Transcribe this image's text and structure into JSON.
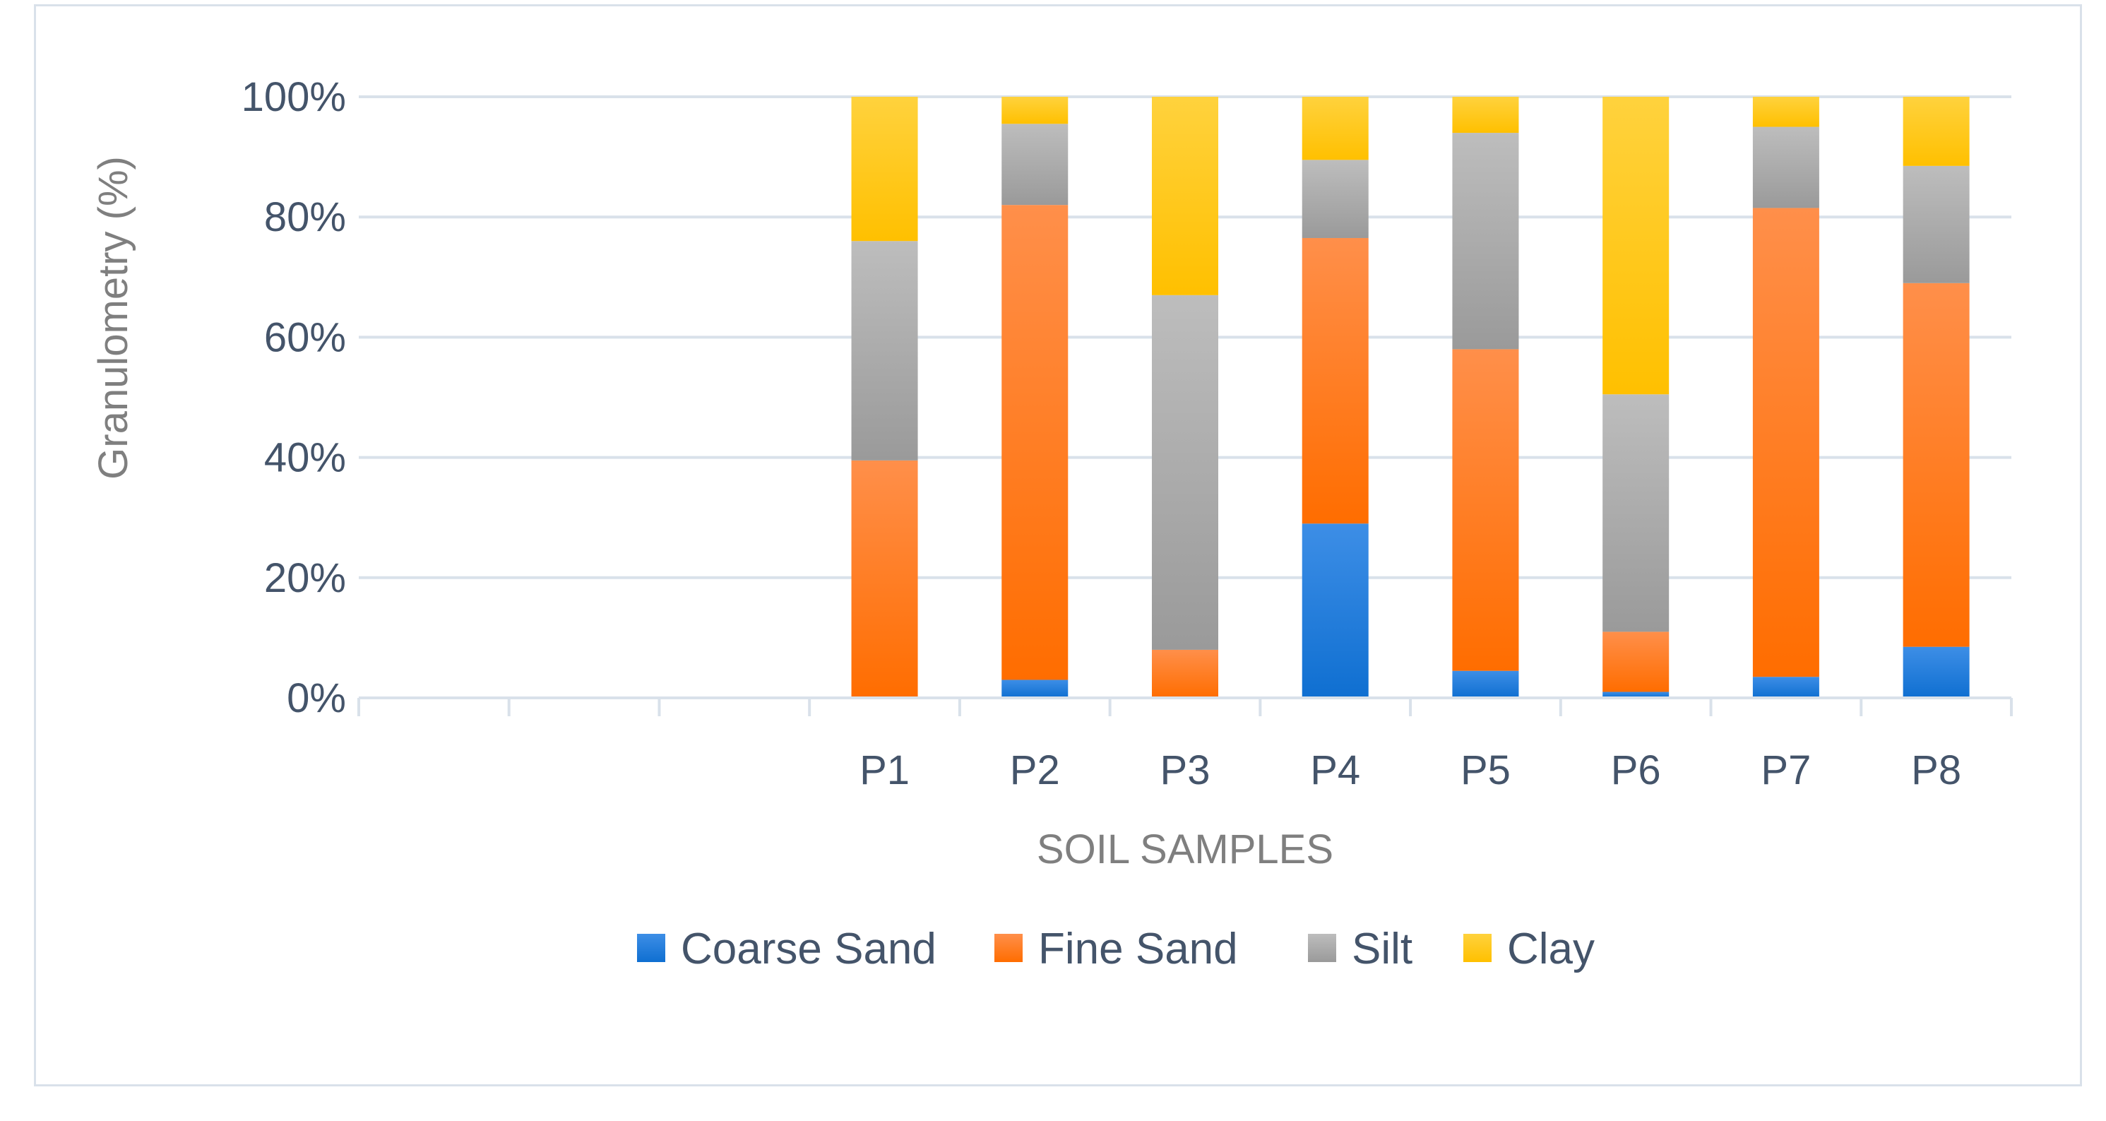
{
  "chart_data": {
    "type": "bar",
    "stacked": true,
    "percent_stacked": true,
    "title": "",
    "xlabel": "SOIL SAMPLES",
    "ylabel": "Granulometry (%)",
    "ylim": [
      0,
      100
    ],
    "yticks": [
      0,
      20,
      40,
      60,
      80,
      100
    ],
    "ytick_labels": [
      "0%",
      "20%",
      "40%",
      "60%",
      "80%",
      "100%"
    ],
    "grid": true,
    "legend_position": "bottom",
    "slots": [
      "",
      "",
      "",
      "P1",
      "P2",
      "P3",
      "P4",
      "P5",
      "P6",
      "P7",
      "P8"
    ],
    "categories": [
      "P1",
      "P2",
      "P3",
      "P4",
      "P5",
      "P6",
      "P7",
      "P8"
    ],
    "series": [
      {
        "name": "Coarse Sand",
        "color": "#0f6fd1",
        "light": "#3d8ee6",
        "values": [
          0,
          3,
          0,
          29,
          4.5,
          1,
          3.5,
          8.5
        ]
      },
      {
        "name": "Fine Sand",
        "color": "#ff6d00",
        "light": "#ff8f4a",
        "values": [
          39.5,
          79,
          8,
          47.5,
          53.5,
          10,
          78,
          60.5
        ]
      },
      {
        "name": "Silt",
        "color": "#9a9a9a",
        "light": "#bdbdbd",
        "values": [
          36.5,
          13.5,
          59,
          13,
          36,
          39.5,
          13.5,
          19.5
        ]
      },
      {
        "name": "Clay",
        "color": "#ffc000",
        "light": "#ffd23d",
        "values": [
          24,
          4.5,
          33,
          10.5,
          6,
          49.5,
          5,
          11.5
        ]
      }
    ]
  }
}
